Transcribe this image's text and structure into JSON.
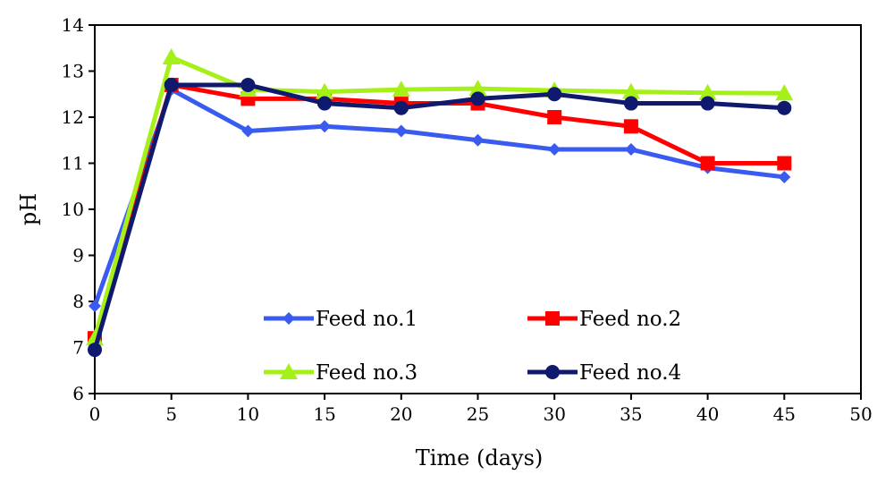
{
  "chart_data": {
    "type": "line",
    "title": "",
    "xlabel": "Time (days)",
    "ylabel": "pH",
    "xlim": [
      0,
      50
    ],
    "ylim": [
      6,
      14
    ],
    "xticks": [
      0,
      5,
      10,
      15,
      20,
      25,
      30,
      35,
      40,
      45,
      50
    ],
    "yticks": [
      6,
      7,
      8,
      9,
      10,
      11,
      12,
      13,
      14
    ],
    "grid": false,
    "legend_position": "inside-bottom",
    "series": [
      {
        "name": "Feed no.1",
        "color": "#3a5bf0",
        "marker": "diamond",
        "x": [
          0,
          5,
          10,
          15,
          20,
          25,
          30,
          35,
          40,
          45
        ],
        "y": [
          7.9,
          12.6,
          11.7,
          11.8,
          11.7,
          11.5,
          11.3,
          11.3,
          10.9,
          10.7
        ]
      },
      {
        "name": "Feed no.2",
        "color": "#ff0000",
        "marker": "square",
        "x": [
          0,
          5,
          10,
          15,
          20,
          25,
          30,
          35,
          40,
          45
        ],
        "y": [
          7.2,
          12.7,
          12.4,
          12.4,
          12.3,
          12.3,
          12.0,
          11.8,
          11.0,
          11.0
        ]
      },
      {
        "name": "Feed no.3",
        "color": "#a6f01a",
        "marker": "triangle",
        "x": [
          0,
          5,
          10,
          15,
          20,
          25,
          30,
          35,
          40,
          45
        ],
        "y": [
          7.2,
          13.3,
          12.6,
          12.55,
          12.6,
          12.62,
          12.58,
          12.55,
          12.53,
          12.52
        ]
      },
      {
        "name": "Feed no.4",
        "color": "#0f1a6e",
        "marker": "circle",
        "x": [
          0,
          5,
          10,
          15,
          20,
          25,
          30,
          35,
          40,
          45
        ],
        "y": [
          6.95,
          12.7,
          12.7,
          12.3,
          12.2,
          12.4,
          12.5,
          12.3,
          12.3,
          12.2
        ]
      }
    ]
  }
}
